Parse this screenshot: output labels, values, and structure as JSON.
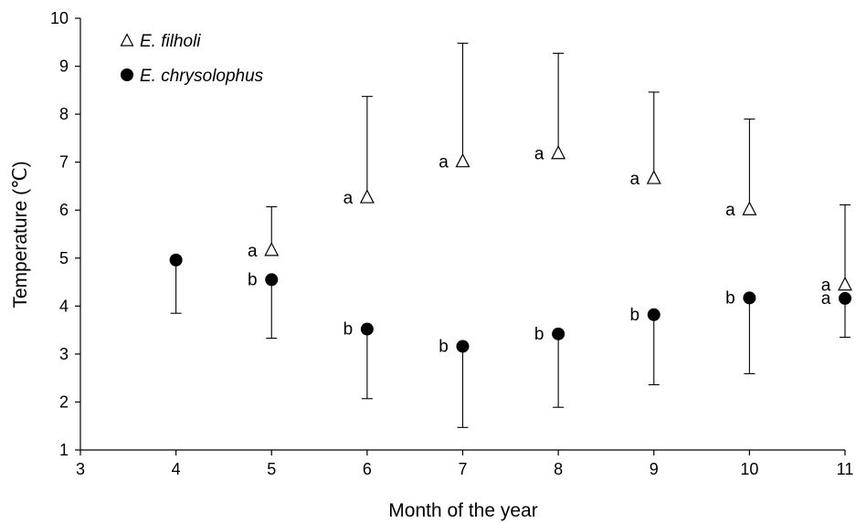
{
  "chart_data": {
    "type": "scatter",
    "title": "",
    "xlabel": "Month of the year",
    "ylabel": "Temperature (℃)",
    "xlim": [
      3,
      11
    ],
    "ylim": [
      1,
      10
    ],
    "x_ticks": [
      3,
      4,
      5,
      6,
      7,
      8,
      9,
      10,
      11
    ],
    "y_ticks": [
      1,
      2,
      3,
      4,
      5,
      6,
      7,
      8,
      9,
      10
    ],
    "grid": false,
    "legend_position": "top-left",
    "series": [
      {
        "name": "E. filholi",
        "marker": "open-triangle",
        "error_bar_direction": "up",
        "points": [
          {
            "x": 5,
            "y": 5.15,
            "err_end": 6.07,
            "label": "a"
          },
          {
            "x": 6,
            "y": 6.25,
            "err_end": 8.37,
            "label": "a"
          },
          {
            "x": 7,
            "y": 7.0,
            "err_end": 9.48,
            "label": "a"
          },
          {
            "x": 8,
            "y": 7.17,
            "err_end": 9.27,
            "label": "a"
          },
          {
            "x": 9,
            "y": 6.65,
            "err_end": 8.46,
            "label": "a"
          },
          {
            "x": 10,
            "y": 6.0,
            "err_end": 7.9,
            "label": "a"
          },
          {
            "x": 11,
            "y": 4.43,
            "err_end": 6.11,
            "label": "a"
          }
        ]
      },
      {
        "name": "E. chrysolophus",
        "marker": "filled-circle",
        "error_bar_direction": "down",
        "points": [
          {
            "x": 4,
            "y": 4.96,
            "err_end": 3.85,
            "label": ""
          },
          {
            "x": 5,
            "y": 4.55,
            "err_end": 3.33,
            "label": "b"
          },
          {
            "x": 6,
            "y": 3.52,
            "err_end": 2.07,
            "label": "b"
          },
          {
            "x": 7,
            "y": 3.16,
            "err_end": 1.47,
            "label": "b"
          },
          {
            "x": 8,
            "y": 3.42,
            "err_end": 1.89,
            "label": "b"
          },
          {
            "x": 9,
            "y": 3.82,
            "err_end": 2.36,
            "label": "b"
          },
          {
            "x": 10,
            "y": 4.17,
            "err_end": 2.59,
            "label": "b"
          },
          {
            "x": 11,
            "y": 4.16,
            "err_end": 3.35,
            "label": "a"
          }
        ]
      }
    ]
  }
}
